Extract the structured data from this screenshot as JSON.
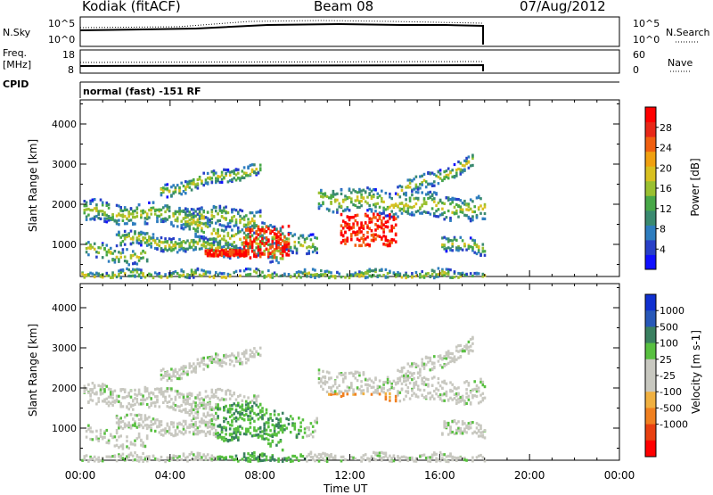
{
  "header": {
    "station": "Kodiak (fitACF)",
    "beam": "Beam 08",
    "date": "07/Aug/2012"
  },
  "strips": {
    "nsky_label": "N.Sky",
    "nsky_ticks": [
      "10^5",
      "10^0"
    ],
    "nsearch_label": "N.Search",
    "nsearch_ticks": [
      "10^5",
      "10^0"
    ],
    "freq_label": "Freq.",
    "freq_unit": "[MHz]",
    "freq_ticks": [
      "18",
      "8"
    ],
    "nave_label": "Nave",
    "nave_ticks": [
      "60",
      "0"
    ],
    "cpid_label": "CPID",
    "cpid_value": "normal (fast) -151 RF"
  },
  "chart_data": [
    {
      "type": "heatmap",
      "parameter": "Power",
      "ylabel": "Slant Range [km]",
      "xlabel": "Time UT",
      "x_ticks": [
        "00:00",
        "04:00",
        "08:00",
        "12:00",
        "16:00",
        "20:00",
        "00:00"
      ],
      "x_range_hours": [
        0,
        24
      ],
      "y_ticks": [
        1000,
        2000,
        3000,
        4000
      ],
      "ylim": [
        200,
        4600
      ],
      "colorbar": {
        "label": "Power [dB]",
        "ticks": [
          4,
          8,
          12,
          16,
          20,
          24,
          28
        ],
        "colors": [
          "#1010ff",
          "#2840c8",
          "#2e7dbf",
          "#3a8a70",
          "#48a848",
          "#9ac030",
          "#d8c020",
          "#f0a010",
          "#f06010",
          "#e82818",
          "#ff0000"
        ]
      },
      "data_end_hour": 18
    },
    {
      "type": "heatmap",
      "parameter": "Velocity",
      "ylabel": "Slant Range [km]",
      "xlabel": "Time UT",
      "x_ticks": [
        "00:00",
        "04:00",
        "08:00",
        "12:00",
        "16:00",
        "20:00",
        "00:00"
      ],
      "x_range_hours": [
        0,
        24
      ],
      "y_ticks": [
        1000,
        2000,
        3000,
        4000
      ],
      "ylim": [
        200,
        4600
      ],
      "colorbar": {
        "label": "Velocity [m s-1]",
        "ticks": [
          "1000",
          "500",
          "100",
          "25",
          "-25",
          "-100",
          "-500",
          "-1000"
        ],
        "colors": [
          "#1030d0",
          "#2858b8",
          "#3a8060",
          "#58c040",
          "#c8c8c0",
          "#c8c8c0",
          "#f0b040",
          "#f08020",
          "#e84010",
          "#ff0000"
        ]
      },
      "data_end_hour": 18
    }
  ]
}
